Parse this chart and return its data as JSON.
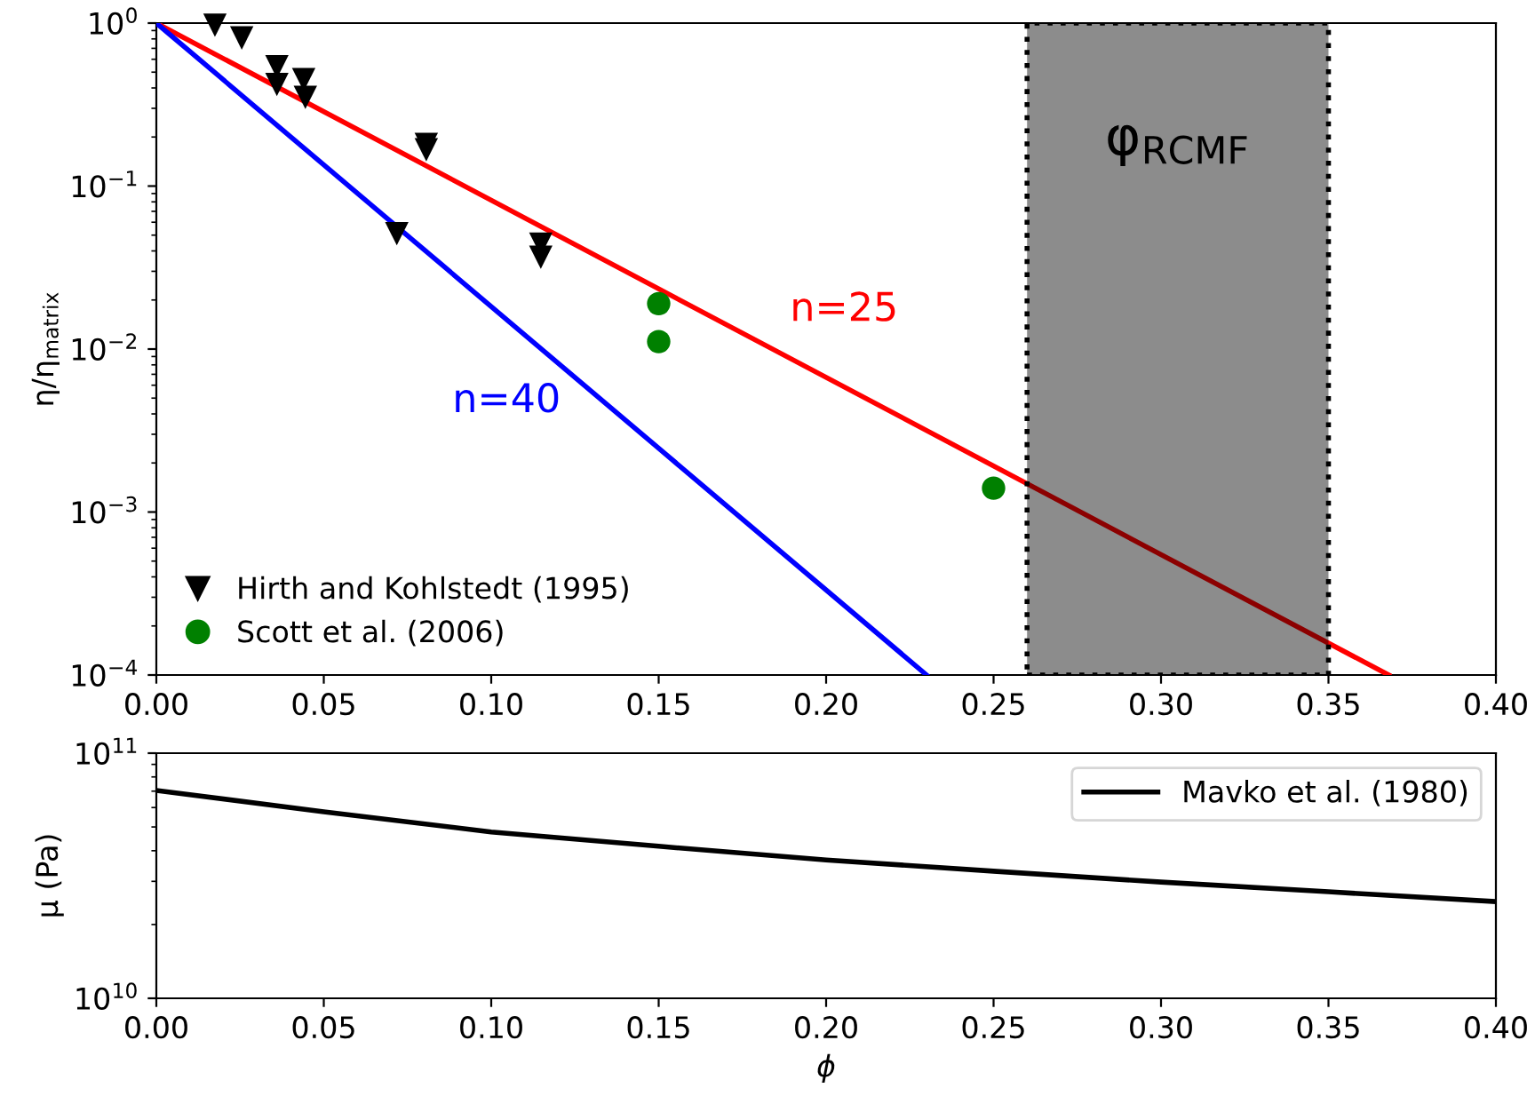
{
  "chart_data": [
    {
      "type": "scatter",
      "ylabel": "η/η$_{matrix}$",
      "log": "y",
      "grid": false,
      "legend": "bottom left",
      "xlim": [
        0,
        0.4
      ],
      "xticks": [
        {
          "value": 0,
          "label": "0.00"
        },
        {
          "value": 0.05,
          "label": "0.05"
        },
        {
          "value": 0.1,
          "label": "0.10"
        },
        {
          "value": 0.15,
          "label": "0.15"
        },
        {
          "value": 0.2,
          "label": "0.20"
        },
        {
          "value": 0.25,
          "label": "0.25"
        },
        {
          "value": 0.3,
          "label": "0.30"
        },
        {
          "value": 0.35,
          "label": "0.35"
        },
        {
          "value": 0.4,
          "label": "0.40"
        }
      ],
      "ylim": [
        0.0001,
        1
      ],
      "yticks": [
        {
          "value": 0.0001,
          "label": "10$^{−4}$"
        },
        {
          "value": 0.001,
          "label": "10$^{−3}$"
        },
        {
          "value": 0.01,
          "label": "10$^{−2}$"
        },
        {
          "value": 0.1,
          "label": "10$^{−1}$"
        },
        {
          "value": 1,
          "label": "10$^{0}$"
        }
      ],
      "bands": [
        {
          "axis": "x",
          "from": 0.26,
          "to": 0.35,
          "label": "φ$_{RCMF}$",
          "color": "#000000"
        }
      ],
      "series": [
        {
          "name": "n=25",
          "type": "line",
          "color": "#ff0000",
          "x": [
            0,
            0.368
          ],
          "values": [
            1,
            0.0001
          ]
        },
        {
          "name": "n=40",
          "type": "line",
          "color": "#0000ff",
          "x": [
            0,
            0.23
          ],
          "values": [
            1,
            0.0001
          ]
        },
        {
          "name": "Hirth and Kohlstedt (1995)",
          "type": "scatter",
          "marker": "triangle",
          "color": "#000000",
          "x": [
            0.0175,
            0.0255,
            0.036,
            0.036,
            0.044,
            0.0445,
            0.0806,
            0.0806,
            0.0718,
            0.1148,
            0.1148
          ],
          "values": [
            0.97,
            0.81,
            0.54,
            0.42,
            0.45,
            0.35,
            0.18,
            0.167,
            0.051,
            0.044,
            0.0366
          ]
        },
        {
          "name": "Scott et al. (2006)",
          "type": "scatter",
          "marker": "circle",
          "color": "#008000",
          "x": [
            0.15,
            0.15,
            0.25
          ],
          "values": [
            0.019,
            0.0111,
            0.0014
          ]
        }
      ]
    },
    {
      "type": "line",
      "xlabel": "ϕ",
      "ylabel": "μ (Pa)",
      "log": "y",
      "grid": false,
      "legend": "top right",
      "xlim": [
        0,
        0.4
      ],
      "xticks": [
        {
          "value": 0,
          "label": "0.00"
        },
        {
          "value": 0.05,
          "label": "0.05"
        },
        {
          "value": 0.1,
          "label": "0.10"
        },
        {
          "value": 0.15,
          "label": "0.15"
        },
        {
          "value": 0.2,
          "label": "0.20"
        },
        {
          "value": 0.25,
          "label": "0.25"
        },
        {
          "value": 0.3,
          "label": "0.30"
        },
        {
          "value": 0.35,
          "label": "0.35"
        },
        {
          "value": 0.4,
          "label": "0.40"
        }
      ],
      "ylim": [
        10000000000,
        100000000000
      ],
      "yticks": [
        {
          "value": 10000000000,
          "label": "10$^{10}$"
        },
        {
          "value": 100000000000,
          "label": "10$^{11}$"
        }
      ],
      "series": [
        {
          "name": "Mavko et al. (1980)",
          "color": "#000000",
          "x": [
            0,
            0.05,
            0.1,
            0.15,
            0.2,
            0.25,
            0.3,
            0.35,
            0.4
          ],
          "values": [
            70500000000,
            57700000000,
            47700000000,
            41700000000,
            36700000000,
            33000000000,
            29800000000,
            27200000000,
            24800000000
          ]
        }
      ]
    }
  ]
}
